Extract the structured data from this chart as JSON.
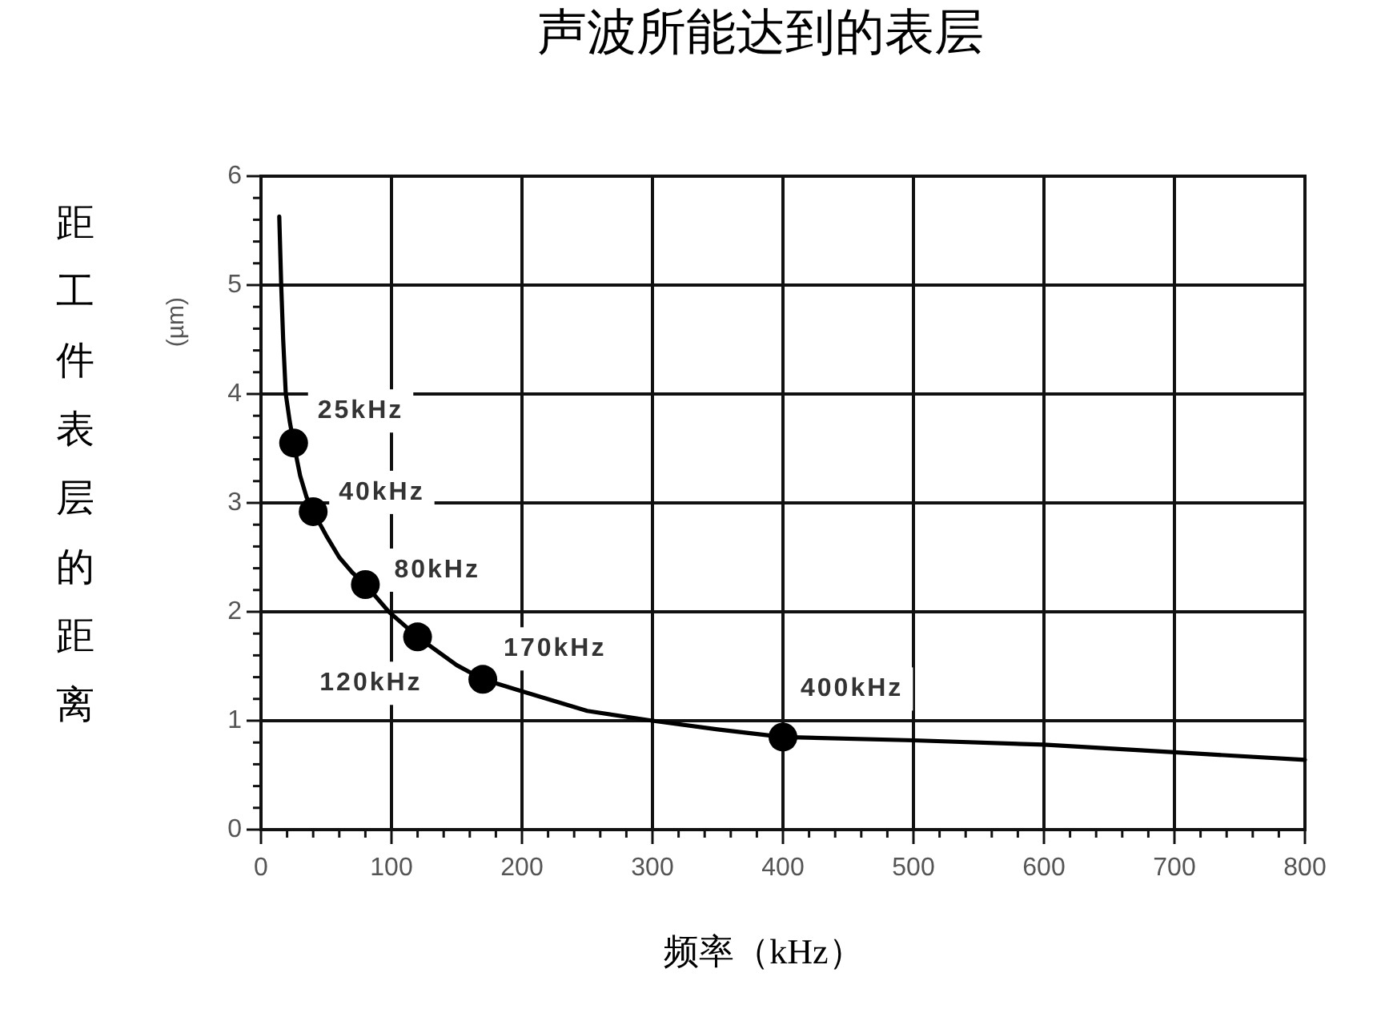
{
  "chart_data": {
    "type": "line",
    "title": "声波所能达到的表层",
    "xlabel": "频率（kHz）",
    "ylabel": "距工件表层的距离",
    "annotations": [
      "(µm)",
      {
        "text": "25kHz",
        "x": 25,
        "y": 3.55
      },
      {
        "text": "40kHz",
        "x": 40,
        "y": 2.92
      },
      {
        "text": "80kHz",
        "x": 80,
        "y": 2.25
      },
      {
        "text": "120kHz",
        "x": 120,
        "y": 1.77
      },
      {
        "text": "170kHz",
        "x": 170,
        "y": 1.38
      },
      {
        "text": "400kHz",
        "x": 400,
        "y": 0.85
      }
    ],
    "xlim": [
      0,
      800
    ],
    "ylim": [
      0,
      6
    ],
    "xticks": [
      0,
      {
        "value": 20,
        "label": null
      },
      {
        "value": 40,
        "label": null
      },
      {
        "value": 60,
        "label": null
      },
      {
        "value": 80,
        "label": null
      },
      100,
      {
        "value": 120,
        "label": null
      },
      {
        "value": 140,
        "label": null
      },
      {
        "value": 160,
        "label": null
      },
      {
        "value": 180,
        "label": null
      },
      200,
      {
        "value": 220,
        "label": null
      },
      {
        "value": 240,
        "label": null
      },
      {
        "value": 260,
        "label": null
      },
      {
        "value": 280,
        "label": null
      },
      300,
      {
        "value": 320,
        "label": null
      },
      {
        "value": 340,
        "label": null
      },
      {
        "value": 360,
        "label": null
      },
      {
        "value": 380,
        "label": null
      },
      400,
      {
        "value": 420,
        "label": null
      },
      {
        "value": 440,
        "label": null
      },
      {
        "value": 460,
        "label": null
      },
      {
        "value": 480,
        "label": null
      },
      500,
      {
        "value": 520,
        "label": null
      },
      {
        "value": 540,
        "label": null
      },
      {
        "value": 560,
        "label": null
      },
      {
        "value": 580,
        "label": null
      },
      600,
      {
        "value": 620,
        "label": null
      },
      {
        "value": 640,
        "label": null
      },
      {
        "value": 660,
        "label": null
      },
      {
        "value": 680,
        "label": null
      },
      700,
      {
        "value": 720,
        "label": null
      },
      {
        "value": 740,
        "label": null
      },
      {
        "value": 760,
        "label": null
      },
      {
        "value": 780,
        "label": null
      },
      800
    ],
    "yticks": [
      0,
      {
        "value": 0.2,
        "label": null
      },
      {
        "value": 0.4,
        "label": null
      },
      {
        "value": 0.6,
        "label": null
      },
      {
        "value": 0.8,
        "label": null
      },
      1,
      {
        "value": 1.2,
        "label": null
      },
      {
        "value": 1.4,
        "label": null
      },
      {
        "value": 1.6,
        "label": null
      },
      {
        "value": 1.8,
        "label": null
      },
      2,
      {
        "value": 2.2,
        "label": null
      },
      {
        "value": 2.4,
        "label": null
      },
      {
        "value": 2.6,
        "label": null
      },
      {
        "value": 2.8,
        "label": null
      },
      3,
      {
        "value": 3.2,
        "label": null
      },
      {
        "value": 3.4,
        "label": null
      },
      {
        "value": 3.6,
        "label": null
      },
      {
        "value": 3.8,
        "label": null
      },
      4,
      {
        "value": 4.2,
        "label": null
      },
      {
        "value": 4.4,
        "label": null
      },
      {
        "value": 4.6,
        "label": null
      },
      {
        "value": 4.8,
        "label": null
      },
      5,
      {
        "value": 5.2,
        "label": null
      },
      {
        "value": 5.4,
        "label": null
      },
      {
        "value": 5.6,
        "label": null
      },
      {
        "value": 5.8,
        "label": null
      },
      6
    ],
    "grid": true,
    "series": [
      {
        "type": "line",
        "color": "#000000",
        "x": [
          14,
          15.5,
          17,
          19,
          22,
          25,
          30,
          35,
          40,
          50,
          60,
          70,
          80,
          98,
          120,
          150,
          170,
          200,
          250,
          300,
          350,
          400,
          500,
          600,
          700,
          800
        ],
        "values": [
          5.63,
          5.0,
          4.5,
          4.0,
          3.75,
          3.55,
          3.25,
          3.05,
          2.92,
          2.7,
          2.5,
          2.36,
          2.25,
          2.0,
          1.77,
          1.51,
          1.38,
          1.27,
          1.09,
          1.0,
          0.92,
          0.85,
          0.82,
          0.78,
          0.71,
          0.64
        ]
      },
      {
        "type": "scatter",
        "color": "#000000",
        "marker": "circle",
        "x": [
          25,
          40,
          80,
          120,
          170,
          400
        ],
        "values": [
          3.55,
          2.92,
          2.25,
          1.77,
          1.38,
          0.85
        ]
      }
    ]
  }
}
